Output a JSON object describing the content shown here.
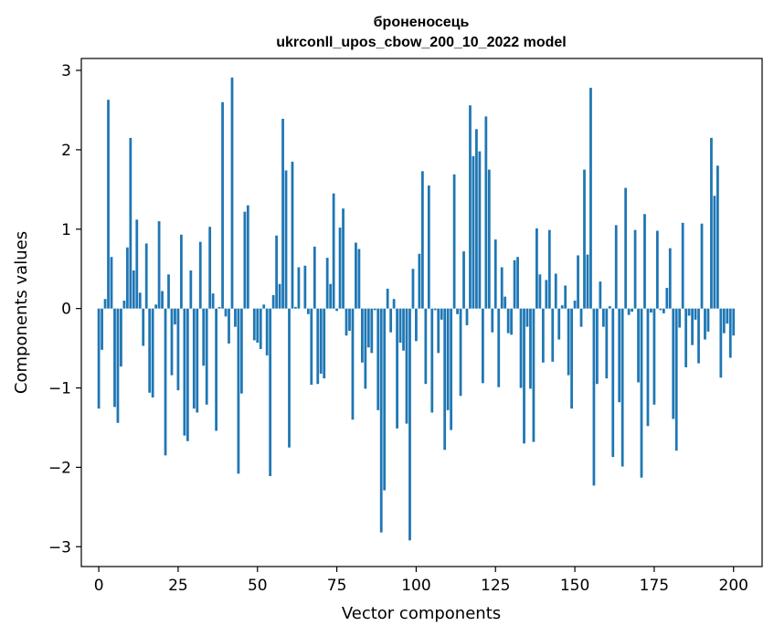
{
  "chart_data": {
    "type": "bar",
    "title_line1": "броненосець",
    "title_line2": "ukrconll_upos_cbow_200_10_2022 model",
    "xlabel": "Vector components",
    "ylabel": "Components values",
    "xlim": [
      -5.5,
      209
    ],
    "ylim": [
      -3.25,
      3.15
    ],
    "xticks": [
      0,
      25,
      50,
      75,
      100,
      125,
      150,
      175,
      200
    ],
    "yticks": [
      -3,
      -2,
      -1,
      0,
      1,
      2,
      3
    ],
    "ytick_labels": [
      "−3",
      "−2",
      "−1",
      "0",
      "1",
      "2",
      "3"
    ],
    "bar_color": "#1f77b4",
    "bar_width": 0.8,
    "values": [
      -1.26,
      -0.52,
      0.12,
      2.63,
      0.65,
      -1.24,
      -1.44,
      -0.73,
      0.1,
      0.77,
      2.15,
      0.48,
      1.12,
      0.2,
      -0.47,
      0.82,
      -1.06,
      -1.12,
      0.05,
      1.1,
      0.22,
      -1.85,
      0.43,
      -0.84,
      -0.2,
      -1.03,
      0.93,
      -1.6,
      -1.67,
      0.48,
      -1.26,
      -1.31,
      0.84,
      -0.72,
      -1.21,
      1.03,
      0.19,
      -1.54,
      0.02,
      2.6,
      -0.1,
      -0.44,
      2.91,
      -0.23,
      -2.08,
      -1.07,
      1.22,
      1.3,
      0.0,
      -0.4,
      -0.43,
      -0.51,
      0.05,
      -0.59,
      -2.11,
      0.17,
      0.92,
      0.31,
      2.39,
      1.74,
      -1.75,
      1.85,
      0.02,
      0.52,
      0.0,
      0.54,
      -0.07,
      -0.96,
      0.78,
      -0.95,
      -0.82,
      -0.88,
      0.64,
      0.31,
      1.45,
      -0.03,
      1.02,
      1.26,
      -0.34,
      -0.28,
      -1.4,
      0.83,
      0.75,
      -0.68,
      -1.01,
      -0.49,
      -0.56,
      -0.02,
      -1.28,
      -2.82,
      -2.29,
      0.25,
      -0.3,
      0.12,
      -1.51,
      -0.43,
      -0.53,
      -1.45,
      -2.92,
      0.5,
      -0.41,
      0.69,
      1.73,
      -0.95,
      1.55,
      -1.31,
      -0.02,
      -0.56,
      -0.14,
      -1.78,
      -1.28,
      -1.53,
      1.69,
      -0.07,
      -1.1,
      0.72,
      -0.21,
      2.56,
      1.92,
      2.26,
      1.98,
      -0.94,
      2.42,
      1.75,
      -0.3,
      0.87,
      -0.99,
      0.52,
      0.15,
      -0.31,
      -0.33,
      0.61,
      0.65,
      -1.0,
      -1.7,
      -0.23,
      -1.01,
      -1.68,
      1.01,
      0.43,
      -0.68,
      0.36,
      0.99,
      -0.67,
      0.44,
      -0.39,
      0.04,
      0.29,
      -0.84,
      -1.26,
      0.1,
      0.67,
      -0.23,
      1.75,
      0.68,
      2.78,
      -2.23,
      -0.95,
      0.34,
      -0.23,
      -0.88,
      0.03,
      -1.87,
      1.05,
      -1.18,
      -1.99,
      1.52,
      -0.08,
      -0.04,
      0.99,
      -0.93,
      -2.13,
      1.19,
      -1.48,
      -0.05,
      -1.21,
      0.98,
      -0.02,
      -0.06,
      0.26,
      0.76,
      -1.39,
      -1.79,
      -0.24,
      1.08,
      -0.74,
      -0.09,
      -0.46,
      -0.14,
      -0.69,
      1.07,
      -0.39,
      -0.29,
      2.15,
      1.42,
      1.8,
      -0.87,
      -0.31,
      -0.19,
      -0.62,
      -0.34
    ]
  }
}
